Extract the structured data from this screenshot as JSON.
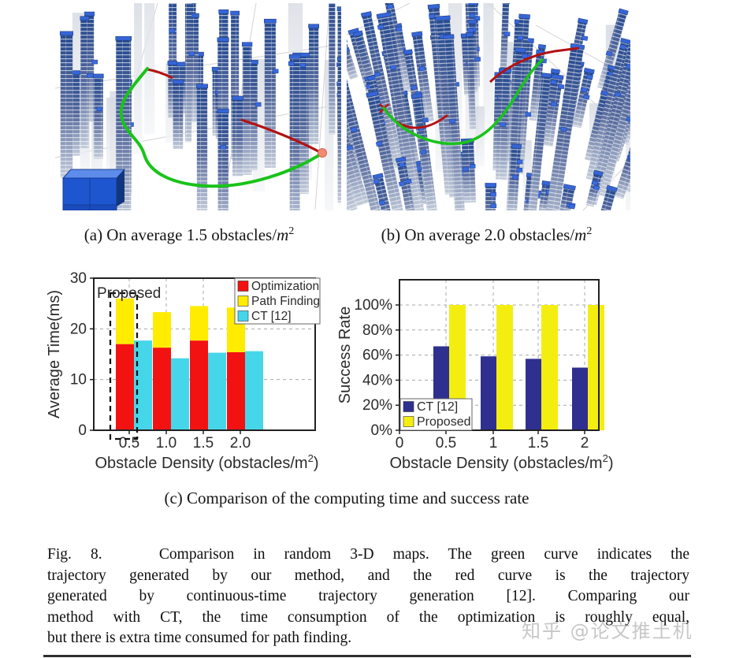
{
  "figure": {
    "caption_a": {
      "pre": "(a) On average 1.5 obstacles/",
      "var": "m",
      "sup": "2"
    },
    "caption_b": {
      "pre": "(b) On average 2.0 obstacles/",
      "var": "m",
      "sup": "2"
    },
    "caption_c": "(c) Comparison of the computing time and success rate",
    "main_caption_lines": [
      "Fig. 8.   Comparison in random 3-D maps. The green curve indicates the",
      "trajectory generated by our method, and the red curve is the trajectory",
      "generated by continuous-time trajectory generation [12]. Comparing our",
      "method with CT, the time consumption of the optimization is roughly equal,",
      "but there is extra time consumed for path finding."
    ],
    "watermark": "知乎 @论文推土机"
  },
  "chart_data": [
    {
      "type": "bar",
      "variant": "stacked_plus_grouped",
      "title": "",
      "categories": [
        "0.5",
        "1.0",
        "1.5",
        "2.0"
      ],
      "stacked_series": [
        {
          "name": "Optimization",
          "color": "#f21212",
          "values": [
            17.0,
            16.3,
            17.7,
            15.4
          ]
        },
        {
          "name": "Path Finding",
          "color": "#ffec00",
          "values": [
            9.0,
            7.0,
            6.8,
            8.8
          ]
        }
      ],
      "side_series": {
        "name": "CT [12]",
        "color": "#46d6e9",
        "values": [
          17.7,
          14.2,
          15.3,
          15.6
        ]
      },
      "legend": [
        "Optimization",
        "Path Finding",
        "CT [12]"
      ],
      "legend_position": "top-right",
      "annotation": {
        "text": "Proposed",
        "style": "dashed-box-around-first-stacked-bar"
      },
      "ylabel": "Average Time(ms)",
      "xlabel_parts": {
        "pre": "Obstacle Density (obstacles/m",
        "sup": "2",
        "post": ")"
      },
      "ylim": [
        0,
        30
      ],
      "yticks": [
        0,
        10,
        20,
        30
      ],
      "grid": "dashed"
    },
    {
      "type": "bar",
      "variant": "grouped",
      "title": "",
      "categories": [
        "0.5",
        "1",
        "1.5",
        "2"
      ],
      "xticks": [
        "0",
        "0.5",
        "1",
        "1.5",
        "2"
      ],
      "series": [
        {
          "name": "CT [12]",
          "color": "#2f2f90",
          "values": [
            67,
            59,
            57,
            50
          ]
        },
        {
          "name": "Proposed",
          "color": "#f4ee10",
          "values": [
            100,
            100,
            100,
            100
          ]
        }
      ],
      "legend": [
        "CT [12]",
        "Proposed"
      ],
      "legend_position": "bottom-left",
      "ylabel": "Success Rate",
      "xlabel_parts": {
        "pre": "Obstacle Density (obstacles/m",
        "sup": "2",
        "post": ")"
      },
      "ylim": [
        0,
        120
      ],
      "ytick_values": [
        0,
        20,
        40,
        60,
        80,
        100
      ],
      "ytick_labels": [
        "0%",
        "20%",
        "40%",
        "60%",
        "80%",
        "100%"
      ],
      "grid": "dashed"
    }
  ],
  "render_colors": {
    "trajectory_green": "#19c319",
    "trajectory_red": "#b31212",
    "endpoint_dot": "#f18a71",
    "tower_blue_top": "#274a8f",
    "tower_cap_blue": "#3565d8",
    "grid_gray": "#cccccc"
  }
}
